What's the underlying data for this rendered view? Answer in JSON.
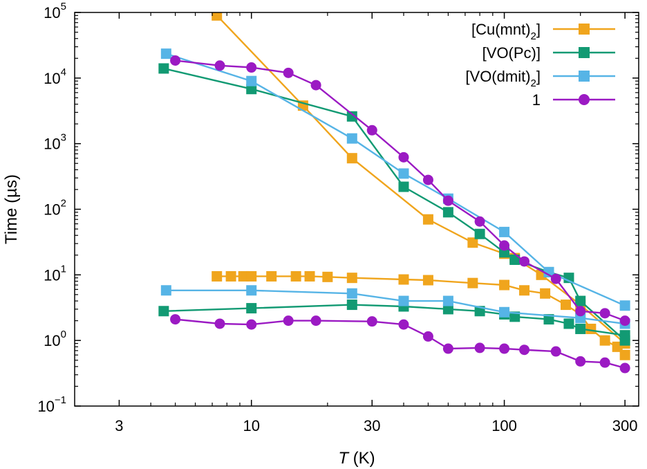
{
  "chart_data": {
    "type": "scatter",
    "xlabel_symbol": "T",
    "xlabel_unit": " (K)",
    "ylabel": "Time (µs)",
    "x_scale": "log",
    "y_scale": "log",
    "xlim": [
      2,
      340
    ],
    "ylim": [
      0.1,
      100000
    ],
    "x_ticks": [
      {
        "value": 3,
        "label": "3"
      },
      {
        "value": 10,
        "label": "10"
      },
      {
        "value": 30,
        "label": "30"
      },
      {
        "value": 100,
        "label": "100"
      },
      {
        "value": 300,
        "label": "300"
      }
    ],
    "y_ticks": [
      {
        "value": 0.1,
        "base": "10",
        "exp": "−1"
      },
      {
        "value": 1,
        "base": "10",
        "exp": "0"
      },
      {
        "value": 10,
        "base": "10",
        "exp": "1"
      },
      {
        "value": 100,
        "base": "10",
        "exp": "2"
      },
      {
        "value": 1000,
        "base": "10",
        "exp": "3"
      },
      {
        "value": 10000,
        "base": "10",
        "exp": "4"
      },
      {
        "value": 100000,
        "base": "10",
        "exp": "5"
      }
    ],
    "grid": false,
    "legend_position": "top-right",
    "series": [
      {
        "legend_main": "[Cu(mnt)",
        "legend_sub": "2",
        "legend_end": "]",
        "color": "#f0a51d",
        "marker": "square",
        "curves": [
          [
            [
              7.3,
              90000
            ],
            [
              16,
              3800
            ],
            [
              25,
              600
            ],
            [
              50,
              70
            ],
            [
              75,
              31
            ],
            [
              100,
              21
            ],
            [
              110,
              18
            ],
            [
              140,
              10
            ],
            [
              200,
              3.5
            ],
            [
              300,
              0.9
            ]
          ],
          [
            [
              7.3,
              9.5
            ],
            [
              8.3,
              9.5
            ],
            [
              9.3,
              9.5
            ],
            [
              10,
              9.5
            ],
            [
              12,
              9.5
            ],
            [
              15,
              9.5
            ],
            [
              17,
              9.5
            ],
            [
              20,
              9.3
            ],
            [
              25,
              9.0
            ],
            [
              40,
              8.5
            ],
            [
              50,
              8.3
            ],
            [
              75,
              7.5
            ],
            [
              100,
              7.0
            ],
            [
              120,
              5.8
            ],
            [
              145,
              5.2
            ],
            [
              175,
              3.5
            ],
            [
              200,
              2.5
            ],
            [
              220,
              1.5
            ],
            [
              250,
              1.0
            ],
            [
              280,
              0.8
            ],
            [
              300,
              0.6
            ]
          ]
        ]
      },
      {
        "legend_main": "[VO(Pc)]",
        "legend_sub": "",
        "legend_end": "",
        "color": "#129a73",
        "marker": "square",
        "curves": [
          [
            [
              4.5,
              14000
            ],
            [
              10,
              6800
            ],
            [
              25,
              2600
            ],
            [
              40,
              220
            ],
            [
              60,
              90
            ],
            [
              80,
              42
            ],
            [
              100,
              22
            ],
            [
              110,
              17
            ],
            [
              150,
              11
            ],
            [
              180,
              9
            ],
            [
              200,
              4.0
            ],
            [
              300,
              1.0
            ]
          ],
          [
            [
              4.5,
              2.8
            ],
            [
              10,
              3.1
            ],
            [
              25,
              3.5
            ],
            [
              40,
              3.3
            ],
            [
              60,
              3.0
            ],
            [
              80,
              2.8
            ],
            [
              100,
              2.5
            ],
            [
              110,
              2.3
            ],
            [
              150,
              2.1
            ],
            [
              180,
              1.8
            ],
            [
              200,
              1.5
            ],
            [
              300,
              1.2
            ]
          ]
        ]
      },
      {
        "legend_main": "[VO(dmit)",
        "legend_sub": "2",
        "legend_end": "]",
        "color": "#56b4e6",
        "marker": "square",
        "curves": [
          [
            [
              4.6,
              23500
            ],
            [
              10,
              9000
            ],
            [
              25,
              1200
            ],
            [
              40,
              350
            ],
            [
              60,
              145
            ],
            [
              100,
              45
            ],
            [
              150,
              11
            ],
            [
              300,
              3.4
            ]
          ],
          [
            [
              4.6,
              5.8
            ],
            [
              10,
              5.8
            ],
            [
              25,
              5.2
            ],
            [
              40,
              4.0
            ],
            [
              60,
              4.0
            ],
            [
              100,
              2.7
            ],
            [
              200,
              2.2
            ],
            [
              300,
              1.8
            ]
          ]
        ]
      },
      {
        "legend_main": "1",
        "legend_sub": "",
        "legend_end": "",
        "color": "#9b1ac3",
        "marker": "circle",
        "curves": [
          [
            [
              5.0,
              18500
            ],
            [
              7.5,
              15500
            ],
            [
              10,
              14500
            ],
            [
              14,
              12000
            ],
            [
              18,
              7800
            ],
            [
              30,
              1600
            ],
            [
              40,
              620
            ],
            [
              50,
              280
            ],
            [
              60,
              135
            ],
            [
              80,
              65
            ],
            [
              100,
              28
            ],
            [
              120,
              16
            ],
            [
              160,
              8.7
            ],
            [
              200,
              2.8
            ],
            [
              250,
              2.6
            ],
            [
              300,
              2.0
            ]
          ],
          [
            [
              5.0,
              2.1
            ],
            [
              7.5,
              1.8
            ],
            [
              10,
              1.75
            ],
            [
              14,
              2.0
            ],
            [
              18,
              2.0
            ],
            [
              30,
              1.95
            ],
            [
              40,
              1.75
            ],
            [
              50,
              1.15
            ],
            [
              60,
              0.75
            ],
            [
              80,
              0.77
            ],
            [
              100,
              0.75
            ],
            [
              120,
              0.72
            ],
            [
              160,
              0.68
            ],
            [
              200,
              0.48
            ],
            [
              250,
              0.46
            ],
            [
              300,
              0.38
            ]
          ]
        ]
      }
    ]
  }
}
